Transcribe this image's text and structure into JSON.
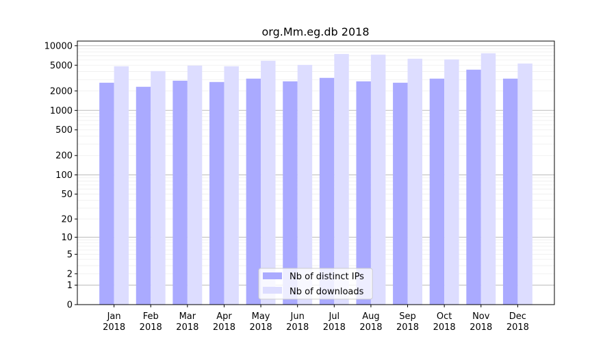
{
  "chart_data": {
    "type": "bar",
    "title": "org.Mm.eg.db 2018",
    "xlabel": "",
    "ylabel": "",
    "categories": [
      "Jan\n2018",
      "Feb\n2018",
      "Mar\n2018",
      "Apr\n2018",
      "May\n2018",
      "Jun\n2018",
      "Jul\n2018",
      "Aug\n2018",
      "Sep\n2018",
      "Oct\n2018",
      "Nov\n2018",
      "Dec\n2018"
    ],
    "y_scale": "log(1+y)",
    "ylim": [
      0,
      11800
    ],
    "yticks": [
      0,
      1,
      2,
      5,
      10,
      20,
      50,
      100,
      200,
      500,
      1000,
      2000,
      5000,
      10000
    ],
    "grid": true,
    "legend_position": "bottom-center",
    "series": [
      {
        "name": "Nb of distinct IPs",
        "color": "#aaaaff",
        "values": [
          2680,
          2320,
          2880,
          2750,
          3100,
          2815,
          3185,
          2815,
          2680,
          3100,
          4265,
          3100
        ]
      },
      {
        "name": "Nb of downloads",
        "color": "#ddddff",
        "values": [
          4815,
          4060,
          4930,
          4815,
          5850,
          5050,
          7460,
          7280,
          6290,
          6140,
          7650,
          5310
        ]
      }
    ]
  }
}
